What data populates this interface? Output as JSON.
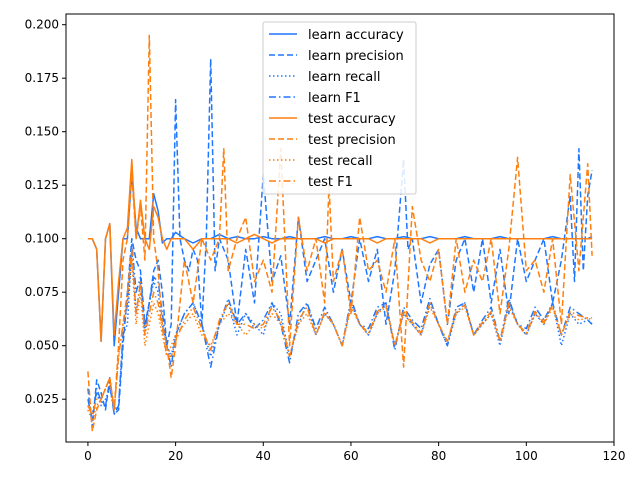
{
  "chart_data": {
    "type": "line",
    "title": "",
    "xlabel": "",
    "ylabel": "",
    "xlim": [
      -5,
      120
    ],
    "ylim": [
      0.005,
      0.205
    ],
    "x_ticks": [
      0,
      20,
      40,
      60,
      80,
      100,
      120
    ],
    "x_tick_labels": [
      "0",
      "20",
      "40",
      "60",
      "80",
      "100",
      "120"
    ],
    "y_ticks": [
      0.025,
      0.05,
      0.075,
      0.1,
      0.125,
      0.15,
      0.175,
      0.2
    ],
    "y_tick_labels": [
      "0.025",
      "0.050",
      "0.075",
      "0.100",
      "0.125",
      "0.150",
      "0.175",
      "0.200"
    ],
    "grid": false,
    "legend_position": "top-center",
    "colors": {
      "learn": "#1f77ff",
      "test": "#ff7f0e"
    },
    "series": [
      {
        "name": "learn accuracy",
        "group": "learn",
        "style": "solid",
        "x": [
          0,
          1,
          2,
          3,
          4,
          5,
          6,
          7,
          8,
          9,
          10,
          11,
          12,
          13,
          14,
          15,
          16,
          17,
          18,
          19,
          20,
          22,
          24,
          26,
          28,
          30,
          32,
          34,
          36,
          38,
          40,
          42,
          44,
          46,
          48,
          50,
          52,
          54,
          56,
          58,
          60,
          62,
          64,
          66,
          68,
          70,
          72,
          74,
          76,
          78,
          80,
          82,
          84,
          86,
          88,
          90,
          92,
          94,
          96,
          98,
          100,
          102,
          104,
          106,
          108,
          110,
          112,
          114,
          115
        ],
        "y": [
          0.1,
          0.1,
          0.095,
          0.052,
          0.1,
          0.107,
          0.05,
          0.075,
          0.1,
          0.1,
          0.131,
          0.105,
          0.1,
          0.1,
          0.1,
          0.121,
          0.113,
          0.098,
          0.1,
          0.1,
          0.103,
          0.1,
          0.098,
          0.1,
          0.1,
          0.102,
          0.1,
          0.101,
          0.1,
          0.1,
          0.101,
          0.1,
          0.1,
          0.101,
          0.1,
          0.1,
          0.1,
          0.101,
          0.1,
          0.1,
          0.101,
          0.1,
          0.1,
          0.101,
          0.1,
          0.1,
          0.101,
          0.1,
          0.1,
          0.101,
          0.1,
          0.1,
          0.1,
          0.101,
          0.1,
          0.1,
          0.1,
          0.101,
          0.1,
          0.1,
          0.1,
          0.1,
          0.1,
          0.101,
          0.1,
          0.1,
          0.1,
          0.1,
          0.101
        ]
      },
      {
        "name": "learn precision",
        "group": "learn",
        "style": "dashed",
        "x": [
          0,
          1,
          2,
          3,
          4,
          5,
          6,
          7,
          8,
          9,
          10,
          11,
          12,
          13,
          14,
          15,
          16,
          17,
          18,
          19,
          20,
          21,
          22,
          23,
          24,
          25,
          26,
          27,
          28,
          29,
          30,
          32,
          34,
          36,
          38,
          40,
          42,
          44,
          46,
          48,
          50,
          52,
          54,
          56,
          58,
          60,
          62,
          64,
          66,
          68,
          70,
          72,
          73,
          74,
          76,
          78,
          80,
          82,
          84,
          86,
          88,
          90,
          92,
          94,
          96,
          98,
          100,
          102,
          104,
          106,
          108,
          110,
          111,
          112,
          113,
          114,
          115
        ],
        "y": [
          0.03,
          0.012,
          0.034,
          0.028,
          0.02,
          0.035,
          0.018,
          0.02,
          0.05,
          0.075,
          0.1,
          0.09,
          0.085,
          0.06,
          0.07,
          0.085,
          0.09,
          0.075,
          0.05,
          0.06,
          0.165,
          0.1,
          0.09,
          0.085,
          0.095,
          0.09,
          0.06,
          0.1,
          0.184,
          0.085,
          0.1,
          0.09,
          0.06,
          0.095,
          0.07,
          0.13,
          0.08,
          0.092,
          0.06,
          0.11,
          0.08,
          0.09,
          0.1,
          0.075,
          0.095,
          0.07,
          0.1,
          0.08,
          0.095,
          0.06,
          0.085,
          0.137,
          0.095,
          0.1,
          0.07,
          0.088,
          0.095,
          0.06,
          0.09,
          0.1,
          0.075,
          0.1,
          0.07,
          0.095,
          0.065,
          0.1,
          0.08,
          0.09,
          0.1,
          0.07,
          0.09,
          0.12,
          0.08,
          0.142,
          0.085,
          0.12,
          0.132
        ]
      },
      {
        "name": "learn recall",
        "group": "learn",
        "style": "dotted",
        "x": [
          0,
          1,
          2,
          3,
          4,
          5,
          6,
          7,
          8,
          9,
          10,
          11,
          12,
          13,
          14,
          15,
          16,
          17,
          18,
          19,
          20,
          22,
          24,
          26,
          28,
          30,
          32,
          34,
          36,
          38,
          40,
          42,
          44,
          46,
          48,
          50,
          52,
          54,
          56,
          58,
          60,
          62,
          64,
          66,
          68,
          70,
          72,
          74,
          76,
          78,
          80,
          82,
          84,
          86,
          88,
          90,
          92,
          94,
          96,
          98,
          100,
          102,
          104,
          106,
          108,
          110,
          112,
          114,
          115
        ],
        "y": [
          0.022,
          0.018,
          0.028,
          0.022,
          0.025,
          0.03,
          0.02,
          0.022,
          0.055,
          0.06,
          0.095,
          0.065,
          0.08,
          0.055,
          0.07,
          0.08,
          0.075,
          0.06,
          0.05,
          0.045,
          0.055,
          0.065,
          0.07,
          0.06,
          0.045,
          0.06,
          0.07,
          0.055,
          0.065,
          0.06,
          0.055,
          0.07,
          0.065,
          0.045,
          0.06,
          0.07,
          0.055,
          0.065,
          0.06,
          0.05,
          0.07,
          0.06,
          0.055,
          0.065,
          0.07,
          0.05,
          0.065,
          0.06,
          0.055,
          0.07,
          0.06,
          0.05,
          0.065,
          0.07,
          0.055,
          0.06,
          0.065,
          0.05,
          0.07,
          0.06,
          0.055,
          0.065,
          0.06,
          0.07,
          0.05,
          0.065,
          0.06,
          0.062,
          0.06
        ]
      },
      {
        "name": "learn F1",
        "group": "learn",
        "style": "dashdot",
        "x": [
          0,
          1,
          2,
          3,
          4,
          5,
          6,
          7,
          8,
          9,
          10,
          11,
          12,
          13,
          14,
          15,
          16,
          17,
          18,
          19,
          20,
          22,
          24,
          26,
          28,
          30,
          32,
          34,
          36,
          38,
          40,
          42,
          44,
          46,
          48,
          50,
          52,
          54,
          56,
          58,
          60,
          62,
          64,
          66,
          68,
          70,
          72,
          74,
          76,
          78,
          80,
          82,
          84,
          86,
          88,
          90,
          92,
          94,
          96,
          98,
          100,
          102,
          104,
          106,
          108,
          110,
          112,
          114,
          115
        ],
        "y": [
          0.025,
          0.015,
          0.03,
          0.024,
          0.022,
          0.032,
          0.018,
          0.022,
          0.055,
          0.07,
          0.098,
          0.075,
          0.082,
          0.058,
          0.07,
          0.082,
          0.08,
          0.065,
          0.05,
          0.04,
          0.055,
          0.065,
          0.07,
          0.06,
          0.04,
          0.06,
          0.072,
          0.06,
          0.065,
          0.058,
          0.062,
          0.07,
          0.06,
          0.042,
          0.065,
          0.07,
          0.058,
          0.068,
          0.06,
          0.05,
          0.072,
          0.06,
          0.058,
          0.068,
          0.07,
          0.048,
          0.068,
          0.062,
          0.058,
          0.072,
          0.06,
          0.05,
          0.068,
          0.07,
          0.055,
          0.062,
          0.068,
          0.052,
          0.072,
          0.06,
          0.058,
          0.068,
          0.062,
          0.07,
          0.055,
          0.068,
          0.065,
          0.062,
          0.06
        ]
      },
      {
        "name": "test accuracy",
        "group": "test",
        "style": "solid",
        "x": [
          0,
          1,
          2,
          3,
          4,
          5,
          6,
          7,
          8,
          9,
          10,
          11,
          12,
          13,
          14,
          15,
          16,
          17,
          18,
          19,
          20,
          22,
          24,
          26,
          28,
          30,
          32,
          34,
          36,
          38,
          40,
          42,
          44,
          46,
          48,
          50,
          52,
          54,
          56,
          58,
          60,
          62,
          64,
          66,
          68,
          70,
          72,
          74,
          76,
          78,
          80,
          82,
          84,
          86,
          88,
          90,
          92,
          94,
          96,
          98,
          100,
          102,
          104,
          106,
          108,
          110,
          112,
          114,
          115
        ],
        "y": [
          0.1,
          0.1,
          0.095,
          0.052,
          0.1,
          0.107,
          0.055,
          0.08,
          0.1,
          0.105,
          0.137,
          0.1,
          0.118,
          0.1,
          0.095,
          0.115,
          0.11,
          0.1,
          0.095,
          0.1,
          0.1,
          0.1,
          0.095,
          0.1,
          0.1,
          0.1,
          0.1,
          0.098,
          0.1,
          0.102,
          0.1,
          0.098,
          0.1,
          0.1,
          0.1,
          0.1,
          0.1,
          0.098,
          0.1,
          0.1,
          0.1,
          0.1,
          0.1,
          0.098,
          0.1,
          0.1,
          0.1,
          0.1,
          0.1,
          0.098,
          0.1,
          0.1,
          0.1,
          0.1,
          0.1,
          0.1,
          0.1,
          0.1,
          0.1,
          0.1,
          0.1,
          0.1,
          0.1,
          0.1,
          0.1,
          0.1,
          0.1,
          0.1,
          0.1
        ]
      },
      {
        "name": "test precision",
        "group": "test",
        "style": "dashed",
        "x": [
          0,
          1,
          2,
          3,
          4,
          5,
          6,
          7,
          8,
          9,
          10,
          11,
          12,
          13,
          14,
          15,
          16,
          17,
          18,
          19,
          20,
          22,
          24,
          26,
          28,
          30,
          31,
          32,
          34,
          36,
          38,
          40,
          42,
          44,
          46,
          48,
          50,
          52,
          54,
          55,
          56,
          58,
          60,
          62,
          64,
          66,
          68,
          70,
          72,
          74,
          76,
          78,
          80,
          82,
          84,
          86,
          88,
          90,
          92,
          94,
          96,
          98,
          100,
          102,
          104,
          106,
          108,
          110,
          112,
          114,
          115
        ],
        "y": [
          0.038,
          0.01,
          0.02,
          0.025,
          0.03,
          0.035,
          0.02,
          0.05,
          0.09,
          0.1,
          0.13,
          0.1,
          0.115,
          0.09,
          0.195,
          0.1,
          0.085,
          0.06,
          0.05,
          0.035,
          0.05,
          0.09,
          0.07,
          0.1,
          0.09,
          0.1,
          0.142,
          0.085,
          0.1,
          0.11,
          0.08,
          0.09,
          0.075,
          0.142,
          0.05,
          0.11,
          0.085,
          0.1,
          0.07,
          0.125,
          0.08,
          0.095,
          0.065,
          0.11,
          0.085,
          0.09,
          0.075,
          0.1,
          0.04,
          0.115,
          0.09,
          0.08,
          0.095,
          0.06,
          0.1,
          0.075,
          0.09,
          0.08,
          0.1,
          0.065,
          0.095,
          0.138,
          0.085,
          0.09,
          0.075,
          0.1,
          0.06,
          0.13,
          0.085,
          0.135,
          0.092
        ]
      },
      {
        "name": "test recall",
        "group": "test",
        "style": "dotted",
        "x": [
          0,
          1,
          2,
          3,
          4,
          5,
          6,
          7,
          8,
          9,
          10,
          11,
          12,
          13,
          14,
          15,
          16,
          17,
          18,
          19,
          20,
          22,
          24,
          26,
          28,
          30,
          32,
          34,
          36,
          38,
          40,
          42,
          44,
          46,
          48,
          50,
          52,
          54,
          56,
          58,
          60,
          62,
          64,
          66,
          68,
          70,
          72,
          74,
          76,
          78,
          80,
          82,
          84,
          86,
          88,
          90,
          92,
          94,
          96,
          98,
          100,
          102,
          104,
          106,
          108,
          110,
          112,
          114,
          115
        ],
        "y": [
          0.02,
          0.015,
          0.022,
          0.025,
          0.03,
          0.035,
          0.02,
          0.045,
          0.06,
          0.07,
          0.09,
          0.06,
          0.075,
          0.05,
          0.06,
          0.07,
          0.065,
          0.055,
          0.045,
          0.05,
          0.055,
          0.06,
          0.065,
          0.055,
          0.05,
          0.06,
          0.065,
          0.06,
          0.055,
          0.06,
          0.058,
          0.065,
          0.06,
          0.045,
          0.06,
          0.065,
          0.055,
          0.065,
          0.06,
          0.05,
          0.068,
          0.06,
          0.055,
          0.065,
          0.068,
          0.05,
          0.065,
          0.06,
          0.055,
          0.068,
          0.06,
          0.052,
          0.065,
          0.068,
          0.055,
          0.06,
          0.065,
          0.052,
          0.068,
          0.06,
          0.055,
          0.065,
          0.06,
          0.068,
          0.055,
          0.065,
          0.062,
          0.063,
          0.062
        ]
      },
      {
        "name": "test F1",
        "group": "test",
        "style": "dashdot",
        "x": [
          0,
          1,
          2,
          3,
          4,
          5,
          6,
          7,
          8,
          9,
          10,
          11,
          12,
          13,
          14,
          15,
          16,
          17,
          18,
          19,
          20,
          22,
          24,
          26,
          28,
          30,
          32,
          34,
          36,
          38,
          40,
          42,
          44,
          46,
          48,
          50,
          52,
          54,
          56,
          58,
          60,
          62,
          64,
          66,
          68,
          70,
          72,
          74,
          76,
          78,
          80,
          82,
          84,
          86,
          88,
          90,
          92,
          94,
          96,
          98,
          100,
          102,
          104,
          106,
          108,
          110,
          112,
          114,
          115
        ],
        "y": [
          0.022,
          0.018,
          0.025,
          0.025,
          0.03,
          0.035,
          0.02,
          0.045,
          0.06,
          0.075,
          0.095,
          0.065,
          0.08,
          0.055,
          0.065,
          0.075,
          0.07,
          0.058,
          0.045,
          0.045,
          0.052,
          0.062,
          0.068,
          0.058,
          0.048,
          0.062,
          0.07,
          0.06,
          0.06,
          0.058,
          0.06,
          0.068,
          0.062,
          0.045,
          0.062,
          0.068,
          0.055,
          0.066,
          0.06,
          0.05,
          0.07,
          0.06,
          0.056,
          0.066,
          0.069,
          0.05,
          0.066,
          0.061,
          0.056,
          0.07,
          0.06,
          0.052,
          0.066,
          0.069,
          0.055,
          0.061,
          0.066,
          0.052,
          0.07,
          0.06,
          0.056,
          0.066,
          0.061,
          0.069,
          0.055,
          0.066,
          0.064,
          0.063,
          0.063
        ]
      }
    ]
  }
}
